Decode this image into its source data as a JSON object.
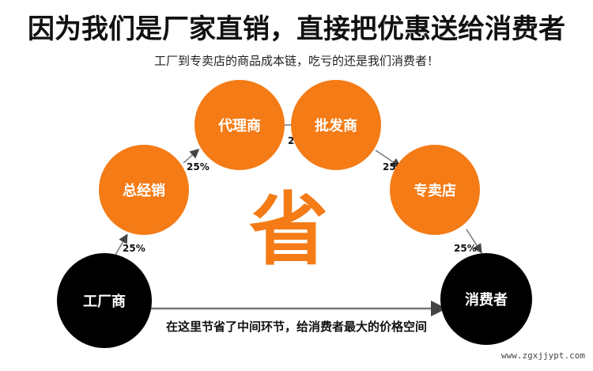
{
  "title": "因为我们是厂家直销，直接把优惠送给消费者",
  "subtitle": "工厂到专卖店的商品成本链，吃亏的还是我们消费者！",
  "center_char": "省",
  "nodes": {
    "factory": "工厂商",
    "distributor": "总经销",
    "agent": "代理商",
    "wholesaler": "批发商",
    "store": "专卖店",
    "consumer": "消费者"
  },
  "markups": [
    "25%",
    "25%",
    "25%",
    "25%",
    "25%"
  ],
  "bottom_note": "在这里节省了中间环节，给消费者最大的价格空间",
  "watermark": "www.zgxjjypt.com",
  "colors": {
    "orange": "#f47b16",
    "black": "#000000",
    "arrow": "#777777"
  }
}
